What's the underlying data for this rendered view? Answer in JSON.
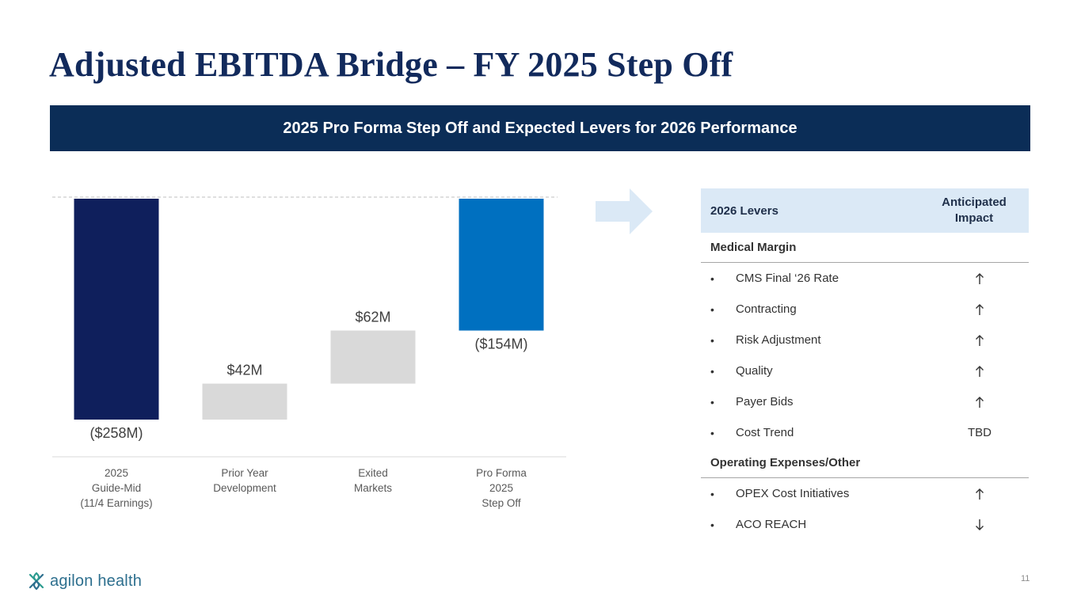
{
  "slide": {
    "title": "Adjusted EBITDA Bridge – FY 2025 Step Off",
    "banner": "2025 Pro Forma Step Off and Expected Levers for 2026 Performance",
    "page_number": "11"
  },
  "logo": {
    "name": "agilon health"
  },
  "chart_data": {
    "type": "bar",
    "subtype": "waterfall",
    "unit": "$M",
    "categories": [
      [
        "2025",
        "Guide-Mid",
        "(11/4 Earnings)"
      ],
      [
        "Prior Year",
        "Development"
      ],
      [
        "Exited",
        "Markets"
      ],
      [
        "Pro Forma",
        "2025",
        "Step Off"
      ]
    ],
    "values": [
      -258,
      42,
      62,
      -154
    ],
    "measures": [
      "absolute",
      "relative",
      "relative",
      "total"
    ],
    "data_labels": [
      "($258M)",
      "$42M",
      "$62M",
      "($154M)"
    ],
    "ylim": [
      -258,
      0
    ],
    "reference_line": 0,
    "colors": [
      "#0f1f5c",
      "#d9d9d9",
      "#d9d9d9",
      "#0070c0"
    ]
  },
  "levers": {
    "header": {
      "lever": "2026 Levers",
      "impact": "Anticipated Impact"
    },
    "sections": [
      {
        "name": "Medical Margin",
        "items": [
          {
            "label": "CMS Final ‘26 Rate",
            "impact": "up"
          },
          {
            "label": "Contracting",
            "impact": "up"
          },
          {
            "label": "Risk Adjustment",
            "impact": "up"
          },
          {
            "label": "Quality",
            "impact": "up"
          },
          {
            "label": "Payer Bids",
            "impact": "up"
          },
          {
            "label": "Cost Trend",
            "impact": "TBD"
          }
        ]
      },
      {
        "name": "Operating Expenses/Other",
        "items": [
          {
            "label": "OPEX Cost Initiatives",
            "impact": "up"
          },
          {
            "label": "ACO REACH",
            "impact": "down"
          }
        ]
      }
    ]
  }
}
